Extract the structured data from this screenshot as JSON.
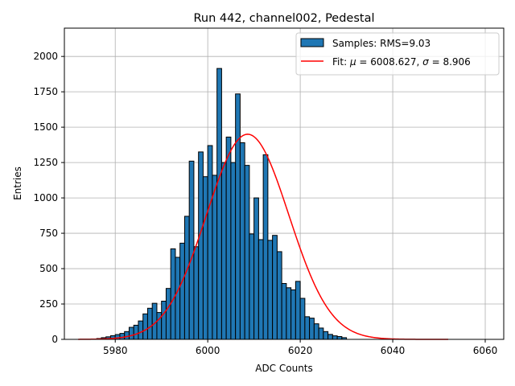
{
  "chart_data": {
    "type": "bar",
    "title": "Run 442, channel002, Pedestal",
    "xlabel": "ADC Counts",
    "ylabel": "Entries",
    "xlim": [
      5969,
      6064
    ],
    "ylim": [
      0,
      2200
    ],
    "xticks": [
      5980,
      6000,
      6020,
      6040,
      6060
    ],
    "yticks": [
      0,
      250,
      500,
      750,
      1000,
      1250,
      1500,
      1750,
      2000
    ],
    "grid": true,
    "legend_position": "top-right",
    "bar_color": "#1f77b4",
    "fit_color": "#ff0000",
    "bins": {
      "start": 5976,
      "width": 1,
      "values": [
        6,
        12,
        18,
        26,
        34,
        42,
        55,
        85,
        100,
        130,
        180,
        220,
        255,
        190,
        270,
        360,
        640,
        580,
        680,
        870,
        1260,
        655,
        1325,
        1150,
        1370,
        1160,
        1915,
        1250,
        1430,
        1250,
        1735,
        1390,
        1230,
        745,
        1000,
        705,
        1305,
        700,
        735,
        620,
        395,
        365,
        350,
        410,
        290,
        160,
        150,
        110,
        80,
        55,
        35,
        25,
        20,
        12
      ]
    },
    "fit": {
      "mu": 6008.627,
      "sigma": 8.906,
      "amplitude": 1450,
      "x_range": [
        5972,
        6052
      ]
    },
    "legend": [
      {
        "kind": "patch",
        "label": "Samples: RMS=9.03"
      },
      {
        "kind": "line",
        "label_prefix": "Fit: ",
        "mu_symbol": "μ",
        "mu_value": " = 6008.627, ",
        "sigma_symbol": "σ",
        "sigma_value": " = 8.906"
      }
    ]
  }
}
